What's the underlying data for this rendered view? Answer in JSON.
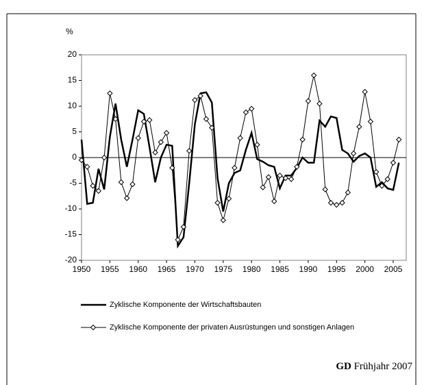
{
  "chart_data": {
    "type": "line",
    "y_unit": "%",
    "x": [
      1950,
      1951,
      1952,
      1953,
      1954,
      1955,
      1956,
      1957,
      1958,
      1959,
      1960,
      1961,
      1962,
      1963,
      1964,
      1965,
      1966,
      1967,
      1968,
      1969,
      1970,
      1971,
      1972,
      1973,
      1974,
      1975,
      1976,
      1977,
      1978,
      1979,
      1980,
      1981,
      1982,
      1983,
      1984,
      1985,
      1986,
      1987,
      1988,
      1989,
      1990,
      1991,
      1992,
      1993,
      1994,
      1995,
      1996,
      1997,
      1998,
      1999,
      2000,
      2001,
      2002,
      2003,
      2004,
      2005,
      2006
    ],
    "series": [
      {
        "name": "Zyklische Komponente der Wirtschaftsbauten",
        "color": "#000000",
        "marker": "none",
        "values": [
          3.5,
          -9,
          -8.8,
          -2.2,
          -6.2,
          4,
          10.5,
          3.5,
          -1.8,
          3.5,
          9.2,
          8.5,
          2,
          -4.8,
          0,
          2.5,
          2.3,
          -17.2,
          -15.5,
          -5,
          6.5,
          12.5,
          12.7,
          10.7,
          -4,
          -10.5,
          -5,
          -3,
          -2.5,
          1.5,
          4.8,
          -0.3,
          -0.8,
          -1.5,
          -1.8,
          -6,
          -3.5,
          -3.5,
          -2,
          0,
          -1,
          -1,
          7.2,
          6,
          8,
          7.7,
          1.5,
          0.8,
          -0.8,
          0.3,
          0.8,
          0,
          -5.7,
          -4.8,
          -6,
          -6.3,
          -1
        ]
      },
      {
        "name": "Zyklische Komponente der privaten Ausrüstungen und sonstigen Anlagen",
        "color": "#000000",
        "marker": "diamond",
        "values": [
          -0.5,
          -1.8,
          -5.5,
          -6.5,
          0,
          12.5,
          7.5,
          -4.8,
          -7.9,
          -5.2,
          3.8,
          7,
          7.3,
          1,
          3,
          4.8,
          -2,
          -16,
          -13.5,
          1.3,
          11.2,
          12,
          7.5,
          5.8,
          -8.8,
          -12.2,
          -8,
          -2,
          3.8,
          8.8,
          9.5,
          2.5,
          -5.8,
          -3.8,
          -8.5,
          -3.5,
          -4,
          -4.2,
          -1.8,
          3.5,
          11,
          16,
          10.5,
          -6.2,
          -8.8,
          -9.2,
          -8.8,
          -6.8,
          0.8,
          6,
          12.8,
          7,
          -2.8,
          -5.5,
          -4.2,
          -1,
          3.5
        ]
      }
    ],
    "xlim": [
      1950,
      2007.3
    ],
    "xticks": [
      1950,
      1955,
      1960,
      1965,
      1970,
      1975,
      1980,
      1985,
      1990,
      1995,
      2000,
      2005
    ],
    "ylim": [
      -20,
      20
    ],
    "yticks": [
      -20,
      -15,
      -10,
      -5,
      0,
      5,
      10,
      15,
      20
    ],
    "source_bold": "GD",
    "source": "Frühjahr 2007"
  }
}
